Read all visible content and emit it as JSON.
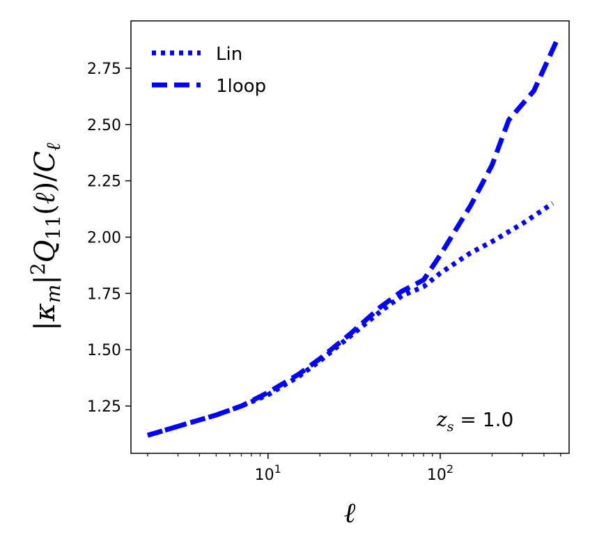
{
  "chart_data": {
    "type": "line",
    "xscale": "log",
    "xlim": [
      1.6,
      560
    ],
    "ylim": [
      1.04,
      2.96
    ],
    "xlabel": "ℓ",
    "ylabel": "|κm|²Q11(ℓ)/Cℓ",
    "xticks": [
      {
        "value": 10,
        "base": "10",
        "exp": "1"
      },
      {
        "value": 100,
        "base": "10",
        "exp": "2"
      }
    ],
    "yticks": [
      {
        "value": 1.25,
        "label": "1.25"
      },
      {
        "value": 1.5,
        "label": "1.50"
      },
      {
        "value": 1.75,
        "label": "1.75"
      },
      {
        "value": 2.0,
        "label": "2.00"
      },
      {
        "value": 2.25,
        "label": "2.25"
      },
      {
        "value": 2.5,
        "label": "2.50"
      },
      {
        "value": 2.75,
        "label": "2.75"
      }
    ],
    "legend_position": "top-left",
    "annotation": "z_s = 1.0",
    "annotation_position": "bottom-right",
    "grid": false,
    "series": [
      {
        "name": "Lin",
        "style": "dotted",
        "color": "#0000ff",
        "x": [
          2,
          3,
          5,
          7,
          10,
          15,
          20,
          30,
          45,
          60,
          80,
          100,
          150,
          200,
          300,
          450
        ],
        "y": [
          1.12,
          1.16,
          1.21,
          1.25,
          1.3,
          1.38,
          1.45,
          1.56,
          1.67,
          1.74,
          1.78,
          1.84,
          1.93,
          1.98,
          2.06,
          2.15
        ]
      },
      {
        "name": "1loop",
        "style": "dashed",
        "color": "#0000ff",
        "x": [
          2,
          3,
          5,
          7,
          10,
          15,
          20,
          30,
          45,
          60,
          80,
          100,
          150,
          200,
          250,
          350,
          480
        ],
        "y": [
          1.12,
          1.16,
          1.21,
          1.25,
          1.31,
          1.39,
          1.46,
          1.57,
          1.69,
          1.76,
          1.81,
          1.92,
          2.14,
          2.32,
          2.52,
          2.65,
          2.88
        ]
      }
    ]
  }
}
